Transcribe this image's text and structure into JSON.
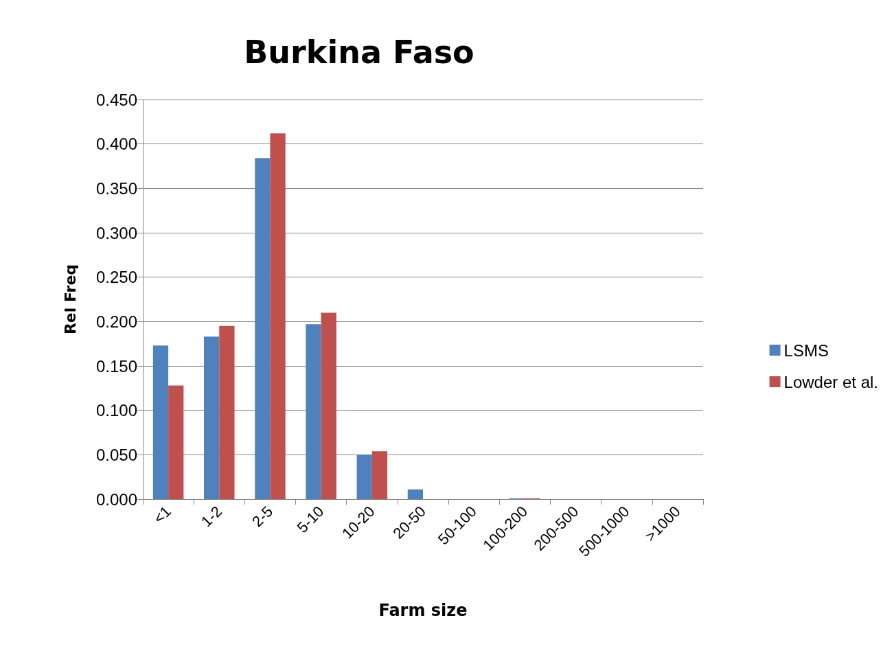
{
  "chart_data": {
    "type": "bar",
    "title": "Burkina Faso",
    "xlabel": "Farm size",
    "ylabel": "Rel Freq",
    "categories": [
      "<1",
      "1-2",
      "2-5",
      "5-10",
      "10-20",
      "20-50",
      "50-100",
      "100-200",
      "200-500",
      "500-1000",
      ">1000"
    ],
    "series": [
      {
        "name": "LSMS",
        "color": "#4f81bd",
        "values": [
          0.173,
          0.183,
          0.384,
          0.197,
          0.05,
          0.011,
          0,
          0.001,
          0,
          0,
          0
        ]
      },
      {
        "name": "Lowder et al.",
        "color": "#c0504d",
        "values": [
          0.128,
          0.195,
          0.412,
          0.21,
          0.054,
          0,
          0,
          0.001,
          0,
          0,
          0
        ]
      }
    ],
    "ylim": [
      0,
      0.45
    ],
    "yticks": [
      {
        "value": 0,
        "label": "0.000"
      },
      {
        "value": 0.05,
        "label": "0.050"
      },
      {
        "value": 0.1,
        "label": "0.100"
      },
      {
        "value": 0.15,
        "label": "0.150"
      },
      {
        "value": 0.2,
        "label": "0.200"
      },
      {
        "value": 0.25,
        "label": "0.250"
      },
      {
        "value": 0.3,
        "label": "0.300"
      },
      {
        "value": 0.35,
        "label": "0.350"
      },
      {
        "value": 0.4,
        "label": "0.400"
      },
      {
        "value": 0.45,
        "label": "0.450"
      }
    ],
    "grid": "y",
    "legend": "right"
  }
}
